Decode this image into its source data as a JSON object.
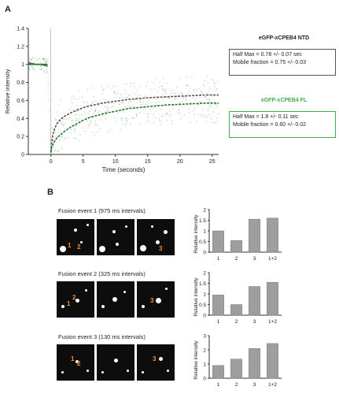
{
  "panel_a": {
    "letter": "A",
    "ntd_title": "eGFP-xCPEB4 NTD",
    "ntd_half_max": "Half Max = 0.78 +/- 0.07 sec",
    "ntd_mobile": "Mobile fraction = 0.75 +/- 0.03",
    "fl_title": "eGFP-xCPEB4 FL",
    "fl_half_max": "Half Max = 1.8 +/- 0.11 sec",
    "fl_mobile": "Mobile fraction = 0.60 +/- 0.02",
    "colors": {
      "ntd": "#888888",
      "fl": "#3db04b"
    }
  },
  "panel_b": {
    "letter": "B",
    "events": [
      {
        "title": "Fusion event 1 (975 ms intervals)"
      },
      {
        "title": "Fusion event 2 (325 ms intervals)"
      },
      {
        "title": "Fusion event 3 (130 ms intervals)"
      }
    ]
  },
  "chart_data": [
    {
      "type": "line",
      "xlabel": "Time (seconds)",
      "ylabel": "Relative intensity",
      "xlim": [
        -3.5,
        26
      ],
      "ylim": [
        0,
        1.4
      ],
      "xticks": [
        0,
        5,
        10,
        15,
        20,
        25
      ],
      "yticks": [
        0,
        0.2,
        0.4,
        0.6,
        0.8,
        1,
        1.2,
        1.4
      ],
      "ytick_labels": [
        "0",
        "0.2",
        "0.4",
        "0.6",
        "0.8",
        "1",
        "1.2",
        "1.4"
      ],
      "series": [
        {
          "name": "eGFP-xCPEB4 NTD",
          "x": [
            -3.5,
            -2.5,
            -1.5,
            -0.5,
            0,
            0.1,
            0.3,
            0.6,
            1,
            1.5,
            2,
            3,
            4,
            5,
            6,
            8,
            10,
            12,
            15,
            18,
            21,
            24,
            26
          ],
          "y": [
            1.02,
            1.0,
            1.0,
            0.98,
            0.03,
            0.12,
            0.22,
            0.29,
            0.35,
            0.39,
            0.42,
            0.46,
            0.49,
            0.52,
            0.54,
            0.57,
            0.59,
            0.61,
            0.63,
            0.64,
            0.65,
            0.66,
            0.66
          ]
        },
        {
          "name": "eGFP-xCPEB4 FL",
          "x": [
            -3.5,
            -2.5,
            -1.5,
            -0.5,
            0,
            0.1,
            0.3,
            0.6,
            1,
            1.5,
            2,
            3,
            4,
            5,
            6,
            8,
            10,
            12,
            15,
            18,
            21,
            24,
            26
          ],
          "y": [
            1.0,
            1.0,
            1.0,
            1.0,
            0.02,
            0.07,
            0.11,
            0.15,
            0.19,
            0.22,
            0.25,
            0.3,
            0.34,
            0.38,
            0.41,
            0.45,
            0.48,
            0.51,
            0.53,
            0.55,
            0.56,
            0.57,
            0.57
          ]
        }
      ]
    },
    {
      "type": "bar",
      "categories": [
        "1",
        "2",
        "3",
        "1+2"
      ],
      "values": [
        1.0,
        0.55,
        1.55,
        1.6
      ],
      "ylabel": "Relative intensity",
      "ylim": [
        0,
        2
      ],
      "yticks": [
        0,
        0.5,
        1,
        1.5,
        2
      ],
      "ytick_labels": [
        "0",
        "0.5",
        "1",
        "1.5",
        "2"
      ]
    },
    {
      "type": "bar",
      "categories": [
        "1",
        "2",
        "3",
        "1+2"
      ],
      "values": [
        0.95,
        0.5,
        1.35,
        1.55
      ],
      "ylabel": "Relative intensity",
      "ylim": [
        0,
        2
      ],
      "yticks": [
        0,
        0.5,
        1,
        1.5,
        2
      ],
      "ytick_labels": [
        "0",
        "0.5",
        "1",
        "1.5",
        "2"
      ]
    },
    {
      "type": "bar",
      "categories": [
        "1",
        "2",
        "3",
        "1+2"
      ],
      "values": [
        0.9,
        1.35,
        2.1,
        2.45
      ],
      "ylabel": "Relative intensity",
      "ylim": [
        0,
        3
      ],
      "yticks": [
        0,
        1,
        2,
        3
      ],
      "ytick_labels": [
        "0",
        "1",
        "2",
        "3"
      ]
    }
  ]
}
